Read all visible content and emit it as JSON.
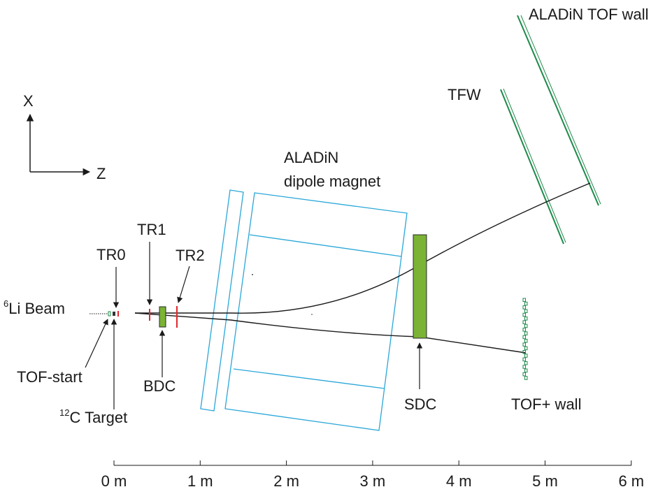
{
  "labels": {
    "x_axis": "X",
    "z_axis": "Z",
    "aladin_tof_wall": "ALADiN TOF wall",
    "tfw": "TFW",
    "magnet_line1": "ALADiN",
    "magnet_line2": "dipole magnet",
    "tr0": "TR0",
    "tr1": "TR1",
    "tr2": "TR2",
    "beam_sup": "6",
    "beam": "Li Beam",
    "tof_start": "TOF-start",
    "bdc": "BDC",
    "target_sup": "12",
    "target": "C Target",
    "sdc": "SDC",
    "tof_plus_wall": "TOF+ wall"
  },
  "scale": {
    "unit": "m",
    "ticks": [
      "0 m",
      "1 m",
      "2 m",
      "3 m",
      "4 m",
      "5 m",
      "6 m"
    ]
  },
  "colors": {
    "magnet_outline": "#2aa7d8",
    "tof_wall": "#1e8a4a",
    "drift_chamber": "#7bb335",
    "tracker": "#e0282e",
    "line": "#1a1a1a"
  }
}
